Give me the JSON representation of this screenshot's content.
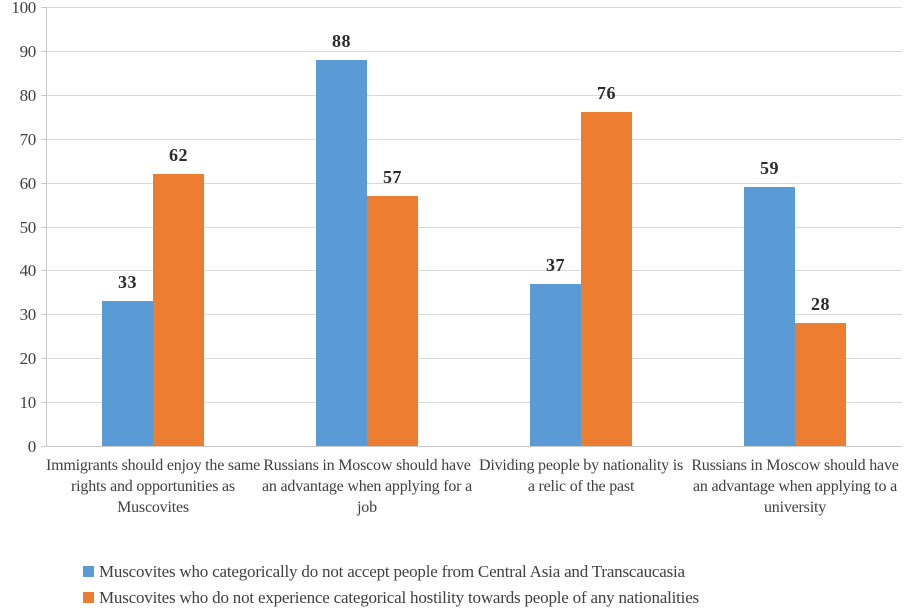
{
  "chart_data": {
    "type": "bar",
    "title": "",
    "xlabel": "",
    "ylabel": "",
    "categories": [
      "Immigrants should enjoy the same rights and opportunities as Muscovites",
      "Russians in Moscow should have an advantage when applying for a job",
      "Dividing people by nationality is a relic of the past",
      "Russians in Moscow should have an advantage when applying to a university"
    ],
    "series": [
      {
        "name": "Muscovites who categorically do not accept people from Central Asia and Transcaucasia",
        "color": "#5b9bd5",
        "values": [
          33,
          88,
          37,
          59
        ]
      },
      {
        "name": "Muscovites who do not experience categorical hostility towards people of any nationalities",
        "color": "#ed7d31",
        "values": [
          62,
          57,
          76,
          28
        ]
      }
    ],
    "ylim": [
      0,
      100
    ],
    "ytick_step": 10,
    "ytick_labels": [
      "0",
      "10",
      "20",
      "30",
      "40",
      "50",
      "60",
      "70",
      "80",
      "90",
      "100"
    ],
    "grid": true,
    "legend_position": "bottom-left",
    "colors": {
      "gridline": "#d9d9d9",
      "axis": "#c9c9c9",
      "tick_text": "#404040",
      "category_text": "#404040",
      "value_label_text": "#2b2b2b",
      "legend_text": "#404040",
      "background": "#ffffff"
    }
  }
}
